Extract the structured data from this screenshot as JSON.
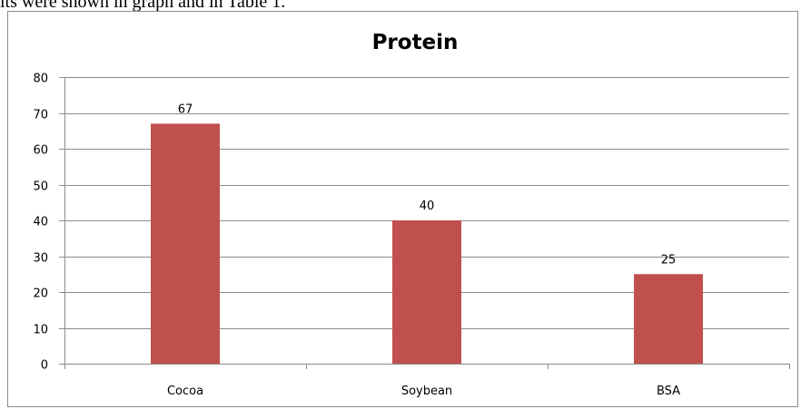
{
  "top_text": "lts were shown in graph and in Table 1.",
  "chart_data": {
    "type": "bar",
    "title": "Protein",
    "xlabel": "",
    "ylabel": "",
    "categories": [
      "Cocoa",
      "Soybean",
      "BSA"
    ],
    "values": [
      67,
      40,
      25
    ],
    "data_labels": [
      "67",
      "40",
      "25"
    ],
    "ylim": [
      0,
      80
    ],
    "yticks": [
      0,
      10,
      20,
      30,
      40,
      50,
      60,
      70,
      80
    ],
    "grid": true,
    "legend": "none",
    "colors": {
      "bar": "#c0504d",
      "grid": "#8c8c8c",
      "axis": "#8c8c8c"
    }
  }
}
